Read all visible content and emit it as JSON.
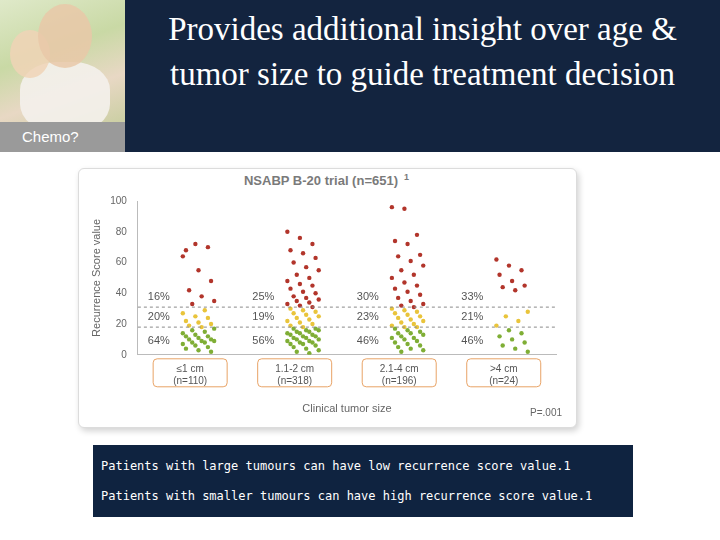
{
  "header": {
    "title": "Provides additional insight over age & tumor size to guide treatment decision",
    "image_label": "Chemo?"
  },
  "chart_data": {
    "type": "scatter",
    "title": "NSABP B-20 trial (n=651)",
    "title_note": "1",
    "xlabel": "Clinical tumor size",
    "ylabel": "Recurrence Score value",
    "categories": [
      "≤1 cm",
      "1.1-2 cm",
      "2.1-4 cm",
      ">4 cm"
    ],
    "category_notes": [
      "(n=110)",
      "(n=318)",
      "(n=196)",
      "(n=24)"
    ],
    "values": [
      [
        64,
        72,
        70,
        68,
        55,
        48,
        42,
        38,
        35,
        33,
        29,
        27,
        25,
        24,
        22,
        21,
        20,
        19,
        18,
        17,
        16,
        15,
        14,
        13,
        12,
        12,
        11,
        10,
        10,
        9,
        9,
        8,
        8,
        7,
        6,
        5,
        4,
        3,
        2
      ],
      [
        80,
        76,
        72,
        68,
        66,
        63,
        60,
        57,
        55,
        52,
        50,
        48,
        46,
        45,
        43,
        41,
        40,
        38,
        37,
        36,
        35,
        34,
        33,
        32,
        31,
        30,
        29,
        28,
        27,
        26,
        25,
        24,
        23,
        22,
        21,
        20,
        19,
        18,
        17,
        17,
        16,
        16,
        15,
        15,
        14,
        14,
        13,
        13,
        12,
        12,
        11,
        11,
        10,
        10,
        9,
        9,
        8,
        8,
        7,
        7,
        6,
        5,
        4,
        3,
        2,
        1
      ],
      [
        96,
        95,
        78,
        74,
        72,
        65,
        64,
        61,
        58,
        55,
        52,
        50,
        47,
        45,
        43,
        41,
        39,
        37,
        35,
        33,
        32,
        31,
        30,
        29,
        28,
        27,
        26,
        25,
        24,
        23,
        22,
        21,
        20,
        19,
        18,
        18,
        17,
        16,
        15,
        14,
        14,
        13,
        12,
        11,
        11,
        10,
        9,
        8,
        7,
        6,
        5,
        4,
        3,
        2
      ],
      [
        62,
        58,
        55,
        52,
        48,
        45,
        44,
        42,
        28,
        25,
        22,
        19,
        16,
        14,
        12,
        10,
        8,
        6,
        4,
        2
      ]
    ],
    "bands": [
      {
        "min": 0,
        "color": "#7fae35",
        "labels": [
          "64%",
          "56%",
          "46%",
          "46%"
        ]
      },
      {
        "min": 18,
        "color": "#e9c43b",
        "labels": [
          "20%",
          "19%",
          "23%",
          "21%"
        ]
      },
      {
        "min": 31,
        "color": "#b2352b",
        "labels": [
          "16%",
          "25%",
          "30%",
          "33%"
        ]
      }
    ],
    "ylim": [
      0,
      100
    ],
    "yticks": [
      0,
      20,
      40,
      60,
      80,
      100
    ],
    "grid": false,
    "annotation": "P=.001"
  },
  "caption": [
    "Patients with large tumours can have low recurrence score value.1",
    "Patients with smaller tumours can have high recurrence score value.1"
  ]
}
